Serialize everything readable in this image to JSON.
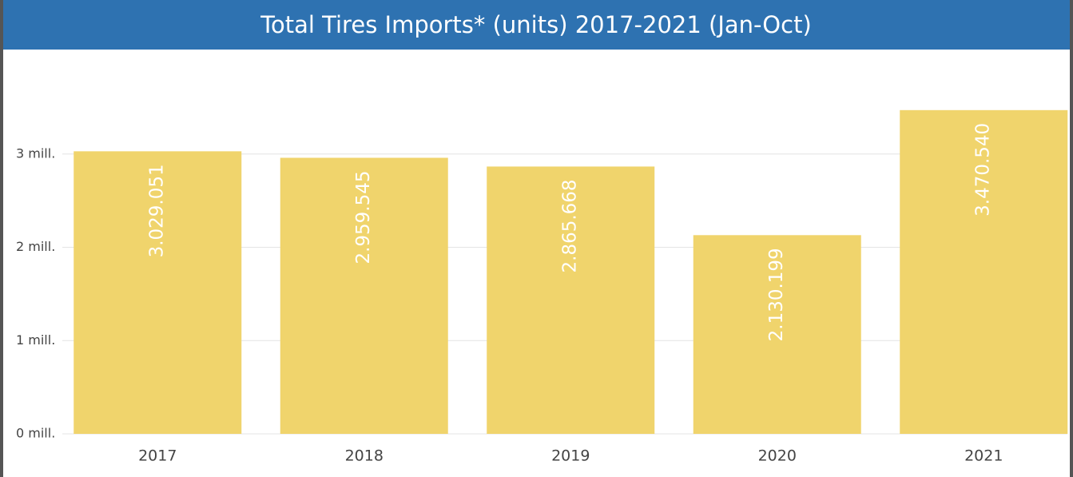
{
  "chart_data": {
    "type": "bar",
    "title": "Total Tires Imports* (units) 2017-2021 (Jan-Oct)",
    "categories": [
      "2017",
      "2018",
      "2019",
      "2020",
      "2021"
    ],
    "values": [
      3029051,
      2959545,
      2865668,
      2130199,
      3470540
    ],
    "value_labels": [
      "3.029.051",
      "2.959.545",
      "2.865.668",
      "2.130.199",
      "3.470.540"
    ],
    "color": "#f0d46c",
    "ylim": [
      0,
      4000000
    ],
    "yticks": [
      {
        "value": 0,
        "label": "0 mill."
      },
      {
        "value": 1000000,
        "label": "1 mill."
      },
      {
        "value": 2000000,
        "label": "2 mill."
      },
      {
        "value": 3000000,
        "label": "3 mill."
      }
    ],
    "grid": true
  }
}
